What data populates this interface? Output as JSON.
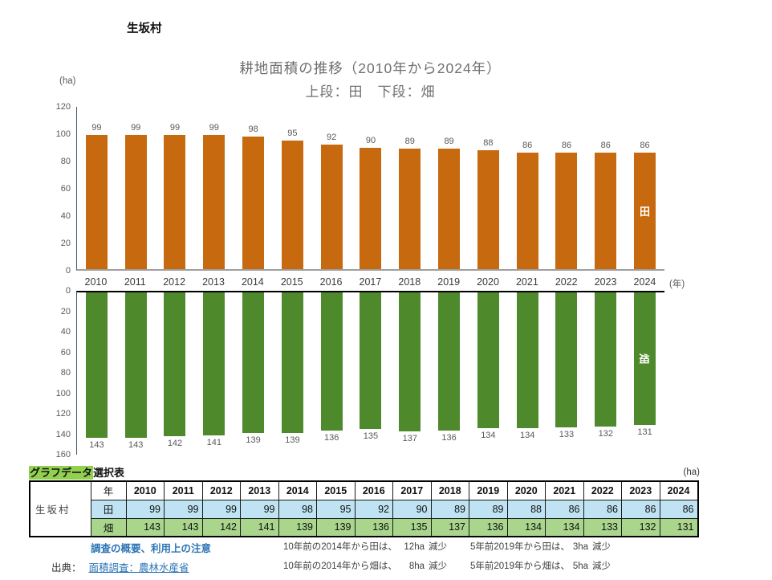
{
  "header": {
    "municipality": "生坂村"
  },
  "chart": {
    "title": "耕地面積の推移（2010年から2024年）",
    "subtitle": "上段：田　下段：畑",
    "unit_y": "(ha)",
    "unit_x": "(年)"
  },
  "colors": {
    "paddy_bar": "#C7690F",
    "field_bar": "#4E8A2C",
    "table_paddy_row": "#BFE3F2",
    "table_field_row": "#A9D58C",
    "table_title_highlight": "#92D050",
    "link": "#2E75B6"
  },
  "chart_data": {
    "type": "bar",
    "title": "耕地面積の推移（2010年から2024年）",
    "subtitle": "上段：田　下段：畑",
    "xlabel": "年",
    "ylabel": "ha",
    "categories": [
      "2010",
      "2011",
      "2012",
      "2013",
      "2014",
      "2015",
      "2016",
      "2017",
      "2018",
      "2019",
      "2020",
      "2021",
      "2022",
      "2023",
      "2024"
    ],
    "series": [
      {
        "name": "田",
        "color": "#C7690F",
        "orientation": "up",
        "ylim": [
          0,
          120
        ],
        "yticks": [
          120,
          100,
          80,
          60,
          40,
          20,
          0
        ],
        "values": [
          99,
          99,
          99,
          99,
          98,
          95,
          92,
          90,
          89,
          89,
          88,
          86,
          86,
          86,
          86
        ]
      },
      {
        "name": "畑",
        "color": "#4E8A2C",
        "orientation": "down",
        "ylim": [
          0,
          160
        ],
        "yticks": [
          0,
          20,
          40,
          60,
          80,
          100,
          120,
          140,
          160
        ],
        "values": [
          143,
          143,
          142,
          141,
          139,
          139,
          136,
          135,
          137,
          136,
          134,
          134,
          133,
          132,
          131
        ]
      }
    ]
  },
  "table": {
    "title_highlight": "グラフデータ",
    "title_rest": "選択表",
    "unit": "(ha)",
    "corner_label": "生坂村",
    "year_header": "年",
    "years": [
      "2010",
      "2011",
      "2012",
      "2013",
      "2014",
      "2015",
      "2016",
      "2017",
      "2018",
      "2019",
      "2020",
      "2021",
      "2022",
      "2023",
      "2024"
    ],
    "rows": [
      {
        "label": "田",
        "bg": "#BFE3F2",
        "values": [
          99,
          99,
          99,
          99,
          98,
          95,
          92,
          90,
          89,
          89,
          88,
          86,
          86,
          86,
          86
        ]
      },
      {
        "label": "畑",
        "bg": "#A9D58C",
        "values": [
          143,
          143,
          142,
          141,
          139,
          139,
          136,
          135,
          137,
          136,
          134,
          134,
          133,
          132,
          131
        ]
      }
    ]
  },
  "footer": {
    "overview_link": "調査の概要、利用上の注意",
    "source_label": "出典：",
    "source_link": "面積調査：農林水産省",
    "notes": [
      {
        "label": "10年前の2014年から田は、",
        "value": "12ha",
        "suffix": "減少",
        "label2": "5年前2019年から田は、",
        "value2": "3ha",
        "suffix2": "減少"
      },
      {
        "label": "10年前の2014年から畑は、",
        "value": "8ha",
        "suffix": "減少",
        "label2": "5年前2019年から畑は、",
        "value2": "5ha",
        "suffix2": "減少"
      }
    ]
  }
}
